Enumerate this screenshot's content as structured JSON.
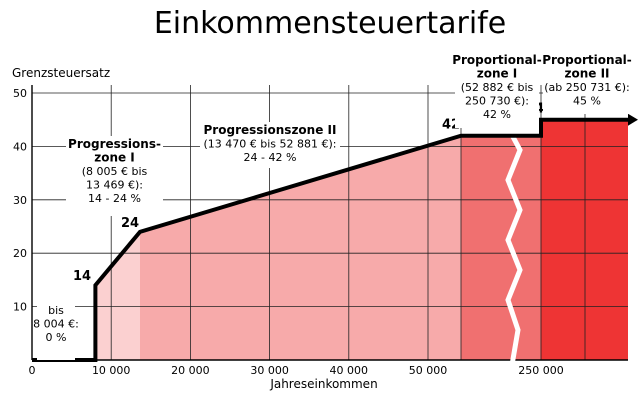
{
  "chart_data": {
    "type": "line",
    "title": "Einkommensteuertarife",
    "ylabel": "Grenzsteuersatz",
    "xlabel": "Jahreseinkommen",
    "ylim": [
      0,
      50
    ],
    "y_ticks": [
      "10",
      "20",
      "30",
      "40",
      "50"
    ],
    "x_ticks": [
      "0",
      "10 000",
      "20 000",
      "30 000",
      "40 000",
      "50 000",
      "250 000"
    ],
    "axis_break": true,
    "grid": true,
    "series": [
      {
        "points": [
          {
            "x": 0,
            "y": 0
          },
          {
            "x": 8004,
            "y": 0
          },
          {
            "x": 8005,
            "y": 14
          },
          {
            "x": 13469,
            "y": 24
          },
          {
            "x": 52881,
            "y": 42
          },
          {
            "x": 250730,
            "y": 42
          },
          {
            "x": 250731,
            "y": 45
          }
        ]
      }
    ],
    "point_labels": [
      "14",
      "24",
      "42",
      "45"
    ],
    "zones": [
      {
        "lines": [
          "bis",
          "8 004 €:",
          "0 %"
        ],
        "color": "#ffffff"
      },
      {
        "lines": [
          "Progressions-",
          "zone I",
          "(8 005 € bis",
          "13 469 €):",
          "14 - 24 %"
        ],
        "color": "#fbd0d0"
      },
      {
        "lines": [
          "Progressionszone II",
          "(13 470 € bis 52 881 €):",
          "24 - 42 %"
        ],
        "color": "#f7aaaa"
      },
      {
        "lines": [
          "Proportional-",
          "zone I",
          "(52 882 € bis",
          "250 730 €):",
          "42 %"
        ],
        "color": "#f07070"
      },
      {
        "lines": [
          "Proportional-",
          "zone II",
          "(ab 250 731 €):",
          "45 %"
        ],
        "color": "#ee3434"
      }
    ]
  }
}
